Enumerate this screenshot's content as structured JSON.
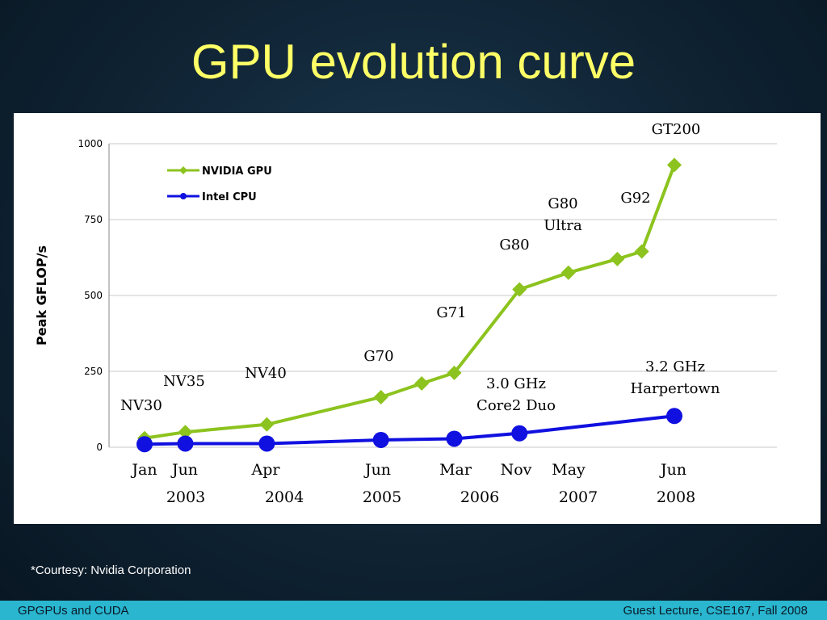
{
  "slide": {
    "title": "GPU evolution curve",
    "courtesy": "*Courtesy: Nvidia Corporation",
    "footer_left": "GPGPUs and CUDA",
    "footer_right": "Guest Lecture, CSE167, Fall 2008"
  },
  "colors": {
    "title": "#ffff66",
    "nvidia": "#8cc31e",
    "intel": "#1010e0",
    "footer": "#29b6ce"
  },
  "chart_data": {
    "type": "line",
    "ylabel": "Peak GFLOP/s",
    "ylim": [
      0,
      1000
    ],
    "yticks": [
      0,
      250,
      500,
      750,
      1000
    ],
    "grid": true,
    "legend_placement": "top-left",
    "x_tick_labels": [
      "Jan",
      "Jun",
      "Apr",
      "Jun",
      "Mar",
      "Nov",
      "May",
      "Jun"
    ],
    "x_year_labels": [
      "2003",
      "2004",
      "2005",
      "2006",
      "2007",
      "2008"
    ],
    "series": [
      {
        "name": "NVIDIA GPU",
        "color": "#8cc31e",
        "x": [
          "2003-01",
          "2003-06",
          "2004-04",
          "2005-06",
          "2005-11",
          "2006-03",
          "2006-11",
          "2007-05",
          "2007-11",
          "2008-02",
          "2008-06"
        ],
        "y": [
          30,
          50,
          75,
          165,
          210,
          245,
          520,
          575,
          620,
          645,
          930
        ]
      },
      {
        "name": "Intel CPU",
        "color": "#1010e0",
        "x": [
          "2003-01",
          "2003-06",
          "2004-04",
          "2005-06",
          "2006-03",
          "2006-11",
          "2008-06"
        ],
        "y": [
          10,
          12,
          12,
          24,
          28,
          46,
          103
        ]
      }
    ],
    "annotations": [
      {
        "text": "NV30"
      },
      {
        "text": "NV35"
      },
      {
        "text": "NV40"
      },
      {
        "text": "G70"
      },
      {
        "text": "G71"
      },
      {
        "text": "G80"
      },
      {
        "text": "G80\nUltra"
      },
      {
        "text": "G92"
      },
      {
        "text": "GT200"
      },
      {
        "text": "3.0 GHz\nCore2 Duo"
      },
      {
        "text": "3.2 GHz\nHarpertown"
      }
    ]
  }
}
